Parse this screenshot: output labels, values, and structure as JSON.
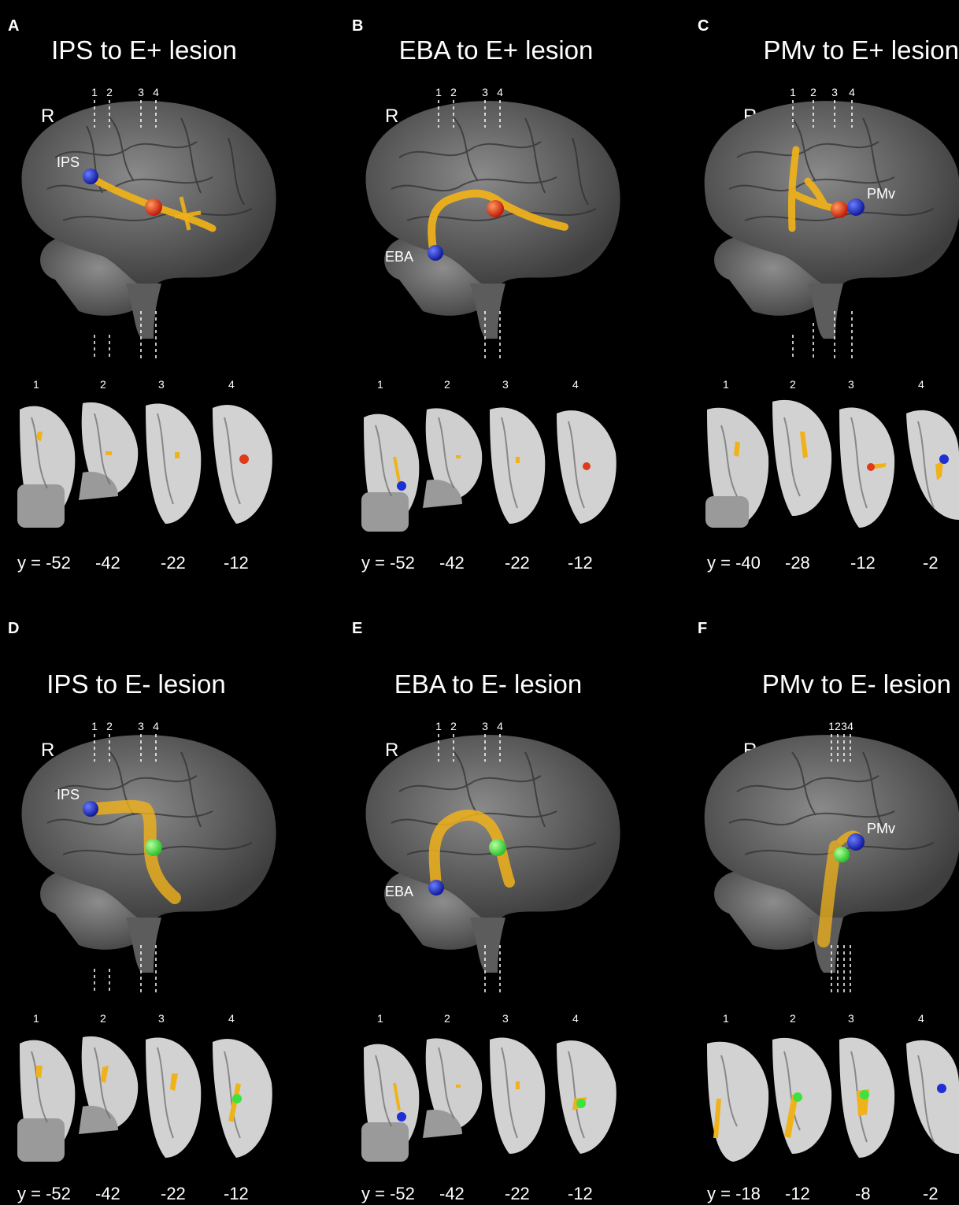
{
  "panels": [
    {
      "label": "A",
      "title": "IPS to E+ lesion",
      "hemisphere": "R",
      "seed": "IPS",
      "lesion": "E+",
      "lesion_color": "#e03a1a",
      "slice_numbers": [
        "1",
        "2",
        "3",
        "4"
      ],
      "y_values": [
        "y = -52",
        "-42",
        "-22",
        "-12"
      ]
    },
    {
      "label": "B",
      "title": "EBA to E+ lesion",
      "hemisphere": "R",
      "seed": "EBA",
      "lesion": "E+",
      "lesion_color": "#e03a1a",
      "slice_numbers": [
        "1",
        "2",
        "3",
        "4"
      ],
      "y_values": [
        "y = -52",
        "-42",
        "-22",
        "-12"
      ]
    },
    {
      "label": "C",
      "title": "PMv to E+ lesion",
      "hemisphere": "R",
      "seed": "PMv",
      "lesion": "E+",
      "lesion_color": "#e03a1a",
      "slice_numbers": [
        "1",
        "2",
        "3",
        "4"
      ],
      "y_values": [
        "y = -40",
        "-28",
        "-12",
        "-2"
      ]
    },
    {
      "label": "D",
      "title": "IPS to E- lesion",
      "hemisphere": "R",
      "seed": "IPS",
      "lesion": "E-",
      "lesion_color": "#3ee23e",
      "slice_numbers": [
        "1",
        "2",
        "3",
        "4"
      ],
      "y_values": [
        "y = -52",
        "-42",
        "-22",
        "-12"
      ]
    },
    {
      "label": "E",
      "title": "EBA to E- lesion",
      "hemisphere": "R",
      "seed": "EBA",
      "lesion": "E-",
      "lesion_color": "#3ee23e",
      "slice_numbers": [
        "1",
        "2",
        "3",
        "4"
      ],
      "y_values": [
        "y = -52",
        "-42",
        "-22",
        "-12"
      ]
    },
    {
      "label": "F",
      "title": "PMv to E- lesion",
      "hemisphere": "R",
      "seed": "PMv",
      "lesion": "E-",
      "lesion_color": "#3ee23e",
      "slice_numbers": [
        "1",
        "2",
        "3",
        "4"
      ],
      "y_values": [
        "y = -18",
        "-12",
        "-8",
        "-2"
      ]
    }
  ],
  "colors": {
    "seed": "#1f2fd6",
    "tract": "#f0b21a",
    "brain": "#6e6e6e",
    "slice": "#d6d6d6"
  }
}
